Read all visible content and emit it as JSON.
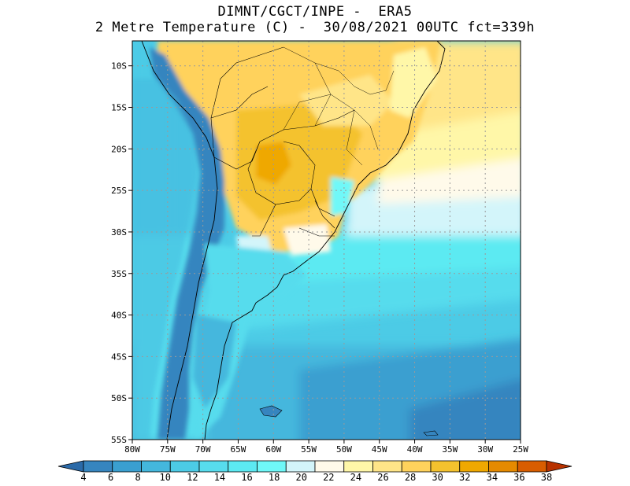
{
  "title": {
    "line1": "DIMNT/CGCT/INPE -  ERA5",
    "line2": "2 Metre Temperature (C) -  30/08/2021 00UTC fct=339h"
  },
  "axes": {
    "lat_labels": [
      "10S",
      "15S",
      "20S",
      "25S",
      "30S",
      "35S",
      "40S",
      "45S",
      "50S",
      "55S"
    ],
    "lon_labels": [
      "80W",
      "75W",
      "70W",
      "65W",
      "60W",
      "55W",
      "50W",
      "45W",
      "40W",
      "35W",
      "30W",
      "25W"
    ],
    "lon_range": [
      -80,
      -25
    ],
    "lat_range": [
      -55,
      -7
    ]
  },
  "colorbar": {
    "ticks": [
      "4",
      "6",
      "8",
      "10",
      "12",
      "14",
      "16",
      "18",
      "20",
      "22",
      "24",
      "26",
      "28",
      "30",
      "32",
      "34",
      "36",
      "38"
    ],
    "colors": [
      "#2b6aa8",
      "#3685bf",
      "#3a9fd0",
      "#44b7dd",
      "#4ccbe6",
      "#57dced",
      "#5ceaf2",
      "#6ff8f8",
      "#d3f5fa",
      "#fffaea",
      "#fff7a8",
      "#ffe588",
      "#ffd25c",
      "#f4c22e",
      "#efa800",
      "#e58a00",
      "#d85d00",
      "#b83200"
    ]
  },
  "colors": {
    "gridline": "#9a9a9a",
    "coast": "#000000"
  }
}
